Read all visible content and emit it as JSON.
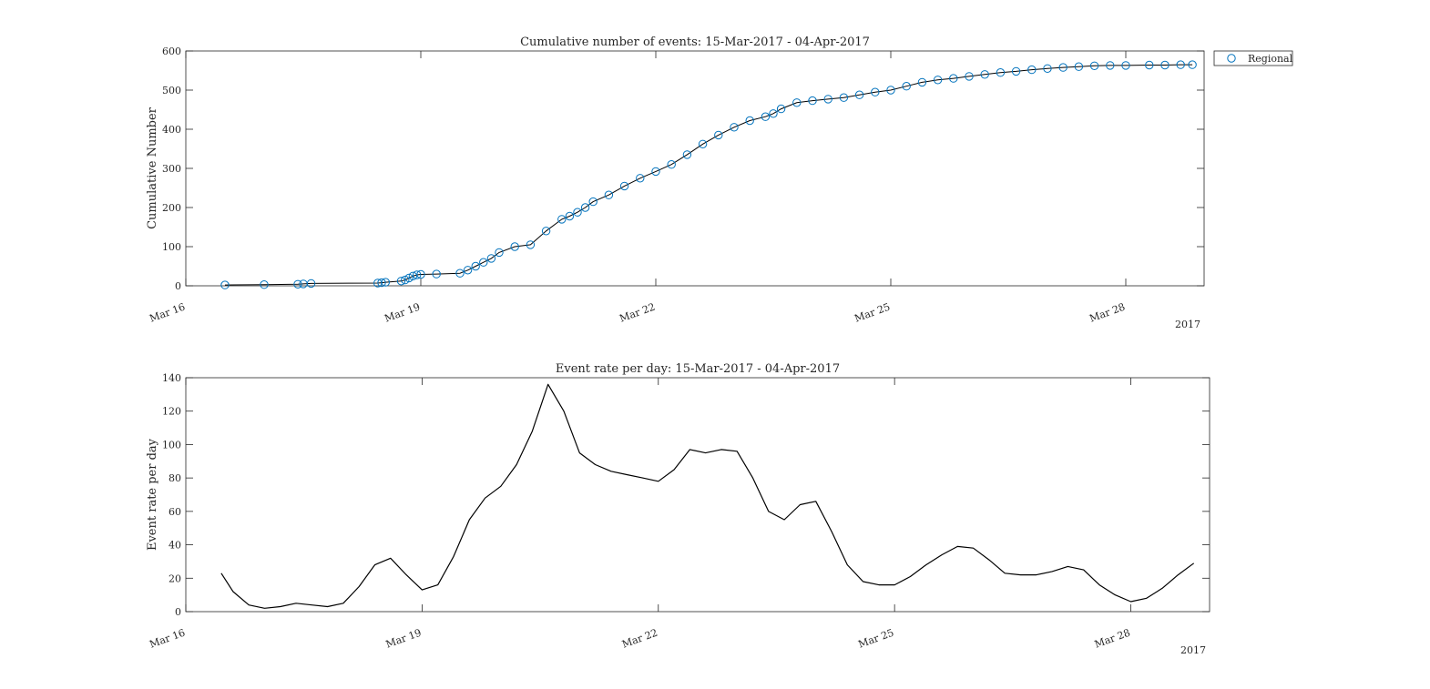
{
  "chart_data": [
    {
      "type": "line",
      "title": "Cumulative number of events: 15-Mar-2017 - 04-Apr-2017",
      "xlabel": "",
      "ylabel": "Cumulative Number",
      "xlim": [
        16,
        29.0
      ],
      "ylim": [
        0,
        600
      ],
      "x_ticks": [
        {
          "value": 16,
          "label": "Mar 16"
        },
        {
          "value": 19,
          "label": "Mar 19"
        },
        {
          "value": 22,
          "label": "Mar 22"
        },
        {
          "value": 25,
          "label": "Mar 25"
        },
        {
          "value": 28,
          "label": "Mar 28"
        }
      ],
      "x_secondary_label": "2017",
      "y_ticks": [
        0,
        100,
        200,
        300,
        400,
        500,
        600
      ],
      "grid": false,
      "legend": {
        "location": "outside-top-right",
        "entries": [
          "Regional"
        ]
      },
      "marker": "circle",
      "series": [
        {
          "name": "Regional",
          "color": "#0072BD",
          "x": [
            16.5,
            17.0,
            17.43,
            17.5,
            17.6,
            18.45,
            18.5,
            18.55,
            18.75,
            18.8,
            18.85,
            18.9,
            18.95,
            19.0,
            19.2,
            19.5,
            19.6,
            19.7,
            19.8,
            19.9,
            20.0,
            20.2,
            20.4,
            20.6,
            20.8,
            20.9,
            21.0,
            21.1,
            21.2,
            21.4,
            21.6,
            21.8,
            22.0,
            22.2,
            22.4,
            22.6,
            22.8,
            23.0,
            23.2,
            23.4,
            23.5,
            23.6,
            23.8,
            24.0,
            24.2,
            24.4,
            24.6,
            24.8,
            25.0,
            25.2,
            25.4,
            25.6,
            25.8,
            26.0,
            26.2,
            26.4,
            26.6,
            26.8,
            27.0,
            27.2,
            27.4,
            27.6,
            27.8,
            28.0,
            28.3,
            28.5,
            28.7,
            28.85
          ],
          "y": [
            2,
            3,
            4,
            5,
            6,
            7,
            8,
            9,
            12,
            15,
            20,
            25,
            28,
            29,
            30,
            32,
            40,
            50,
            60,
            70,
            85,
            100,
            105,
            140,
            170,
            178,
            188,
            200,
            215,
            232,
            255,
            275,
            292,
            310,
            335,
            362,
            385,
            405,
            422,
            432,
            440,
            452,
            468,
            473,
            477,
            481,
            488,
            495,
            500,
            510,
            520,
            526,
            530,
            535,
            540,
            545,
            548,
            552,
            555,
            558,
            560,
            562,
            563,
            563,
            564,
            564,
            565,
            565
          ]
        }
      ]
    },
    {
      "type": "line",
      "title": "Event rate per day: 15-Mar-2017 - 04-Apr-2017",
      "xlabel": "",
      "ylabel": "Event rate per day",
      "xlim": [
        16,
        29.0
      ],
      "ylim": [
        0,
        140
      ],
      "x_ticks": [
        {
          "value": 16,
          "label": "Mar 16"
        },
        {
          "value": 19,
          "label": "Mar 19"
        },
        {
          "value": 22,
          "label": "Mar 22"
        },
        {
          "value": 25,
          "label": "Mar 25"
        },
        {
          "value": 28,
          "label": "Mar 28"
        }
      ],
      "x_secondary_label": "2017",
      "y_ticks": [
        0,
        20,
        40,
        60,
        80,
        100,
        120,
        140
      ],
      "grid": false,
      "series": [
        {
          "color": "#000000",
          "x": [
            16.45,
            16.6,
            16.8,
            17.0,
            17.2,
            17.4,
            17.6,
            17.8,
            18.0,
            18.2,
            18.4,
            18.6,
            18.8,
            19.0,
            19.2,
            19.4,
            19.6,
            19.8,
            20.0,
            20.2,
            20.4,
            20.6,
            20.8,
            21.0,
            21.2,
            21.4,
            21.6,
            21.8,
            22.0,
            22.2,
            22.4,
            22.6,
            22.8,
            23.0,
            23.2,
            23.4,
            23.6,
            23.8,
            24.0,
            24.2,
            24.4,
            24.6,
            24.8,
            25.0,
            25.2,
            25.4,
            25.6,
            25.8,
            26.0,
            26.2,
            26.4,
            26.6,
            26.8,
            27.0,
            27.2,
            27.4,
            27.6,
            27.8,
            28.0,
            28.2,
            28.4,
            28.6,
            28.8
          ],
          "y": [
            23,
            12,
            4,
            2,
            3,
            5,
            4,
            3,
            5,
            15,
            28,
            32,
            22,
            13,
            16,
            33,
            55,
            68,
            75,
            88,
            108,
            136,
            120,
            95,
            88,
            84,
            82,
            80,
            78,
            85,
            97,
            95,
            97,
            96,
            80,
            60,
            55,
            64,
            66,
            48,
            28,
            18,
            16,
            16,
            21,
            28,
            34,
            39,
            38,
            31,
            23,
            22,
            22,
            24,
            27,
            25,
            16,
            10,
            6,
            8,
            14,
            22,
            29
          ]
        }
      ]
    }
  ]
}
